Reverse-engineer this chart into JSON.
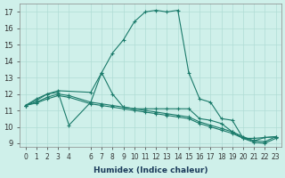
{
  "xlabel": "Humidex (Indice chaleur)",
  "bg_color": "#cff0ea",
  "grid_color": "#b0ddd5",
  "line_color": "#1a7a6a",
  "xlim": [
    -0.5,
    23.5
  ],
  "ylim": [
    8.8,
    17.5
  ],
  "yticks": [
    9,
    10,
    11,
    12,
    13,
    14,
    15,
    16,
    17
  ],
  "xticks": [
    0,
    1,
    2,
    3,
    4,
    6,
    7,
    8,
    9,
    10,
    11,
    12,
    13,
    14,
    15,
    16,
    17,
    18,
    19,
    20,
    21,
    22,
    23
  ],
  "series": [
    {
      "x": [
        0,
        1,
        2,
        3,
        6,
        7,
        8,
        9,
        10,
        11,
        12,
        13,
        14,
        15,
        16,
        17,
        18,
        19,
        20,
        21,
        22,
        23
      ],
      "y": [
        11.3,
        11.7,
        12.0,
        12.2,
        12.1,
        13.3,
        14.5,
        15.3,
        16.4,
        17.0,
        17.1,
        17.0,
        17.1,
        13.3,
        11.7,
        11.5,
        10.5,
        10.4,
        9.3,
        9.3,
        9.35,
        9.4
      ]
    },
    {
      "x": [
        0,
        1,
        2,
        3,
        4,
        6,
        7,
        8,
        9,
        10,
        11,
        12,
        13,
        14,
        15,
        16,
        17,
        18,
        19,
        20,
        21,
        22,
        23
      ],
      "y": [
        11.3,
        11.6,
        12.0,
        12.1,
        10.1,
        11.5,
        13.3,
        12.0,
        11.2,
        11.1,
        11.1,
        11.1,
        11.1,
        11.1,
        11.1,
        10.5,
        10.4,
        10.2,
        9.7,
        9.3,
        9.15,
        9.35,
        9.4
      ]
    },
    {
      "x": [
        0,
        1,
        2,
        3,
        4,
        6,
        7,
        8,
        9,
        10,
        11,
        12,
        13,
        14,
        15,
        16,
        17,
        18,
        19,
        20,
        21,
        22,
        23
      ],
      "y": [
        11.3,
        11.5,
        11.8,
        12.0,
        11.9,
        11.5,
        11.4,
        11.3,
        11.2,
        11.1,
        11.0,
        10.9,
        10.8,
        10.7,
        10.6,
        10.3,
        10.1,
        9.9,
        9.7,
        9.4,
        9.15,
        9.1,
        9.4
      ]
    },
    {
      "x": [
        0,
        1,
        2,
        3,
        4,
        6,
        7,
        8,
        9,
        10,
        11,
        12,
        13,
        14,
        15,
        16,
        17,
        18,
        19,
        20,
        21,
        22,
        23
      ],
      "y": [
        11.3,
        11.45,
        11.7,
        11.9,
        11.8,
        11.4,
        11.3,
        11.2,
        11.1,
        11.0,
        10.9,
        10.8,
        10.7,
        10.6,
        10.5,
        10.2,
        10.0,
        9.8,
        9.6,
        9.3,
        9.05,
        9.0,
        9.3
      ]
    }
  ]
}
